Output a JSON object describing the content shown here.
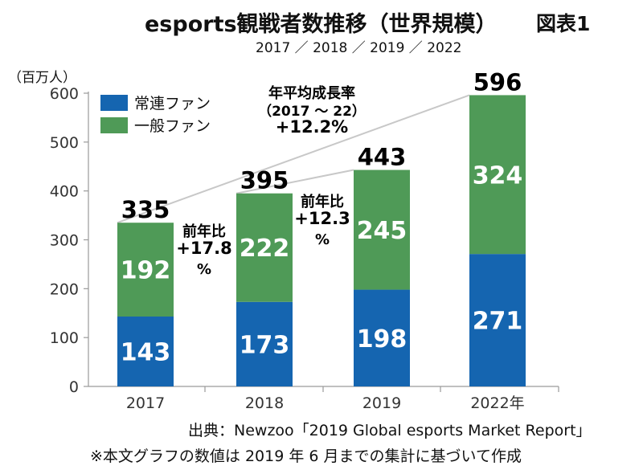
{
  "header": {
    "title": "esports観戦者数推移（世界規模）",
    "figure_label": "図表1",
    "subtitle": "2017 ／ 2018 ／ 2019 ／ 2022"
  },
  "unit_label": "（百万人）",
  "footer": {
    "source": "出典：Newzoo「2019 Global esports Market Report」",
    "note": "※本文グラフの数値は 2019 年 6 月までの集計に基づいて作成"
  },
  "colors": {
    "regular": "#1565b0",
    "general": "#4f9a57",
    "axis": "#9a9a9a",
    "trend": "#c8c8c8"
  },
  "chart_data": {
    "type": "bar",
    "stacked": true,
    "categories": [
      "2017",
      "2018",
      "2019",
      "2022年"
    ],
    "series": [
      {
        "name": "常連ファン",
        "values": [
          143,
          173,
          198,
          271
        ]
      },
      {
        "name": "一般ファン",
        "values": [
          192,
          222,
          245,
          324
        ]
      }
    ],
    "totals": [
      335,
      395,
      443,
      596
    ],
    "ylim": [
      0,
      600
    ],
    "yticks": [
      0,
      100,
      200,
      300,
      400,
      500,
      600
    ],
    "legend_position": "top-left",
    "annotations": {
      "yoy_2018": [
        "前年比",
        "+17.8",
        "%"
      ],
      "yoy_2019": [
        "前年比",
        "+12.3",
        "%"
      ],
      "cagr": [
        "年平均成長率",
        "（2017 ～ 22）",
        "+12.2%"
      ]
    }
  }
}
